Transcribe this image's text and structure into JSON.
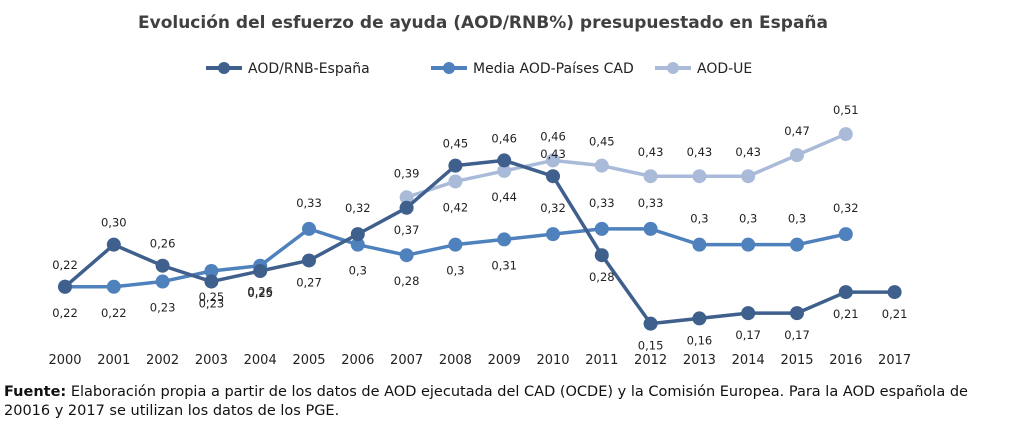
{
  "chart_data": {
    "type": "line",
    "title": "Evolución del esfuerzo de ayuda (AOD/RNB%) presupuestado en España",
    "categories": [
      "2000",
      "2001",
      "2002",
      "2003",
      "2004",
      "2005",
      "2006",
      "2007",
      "2008",
      "2009",
      "2010",
      "2011",
      "2012",
      "2013",
      "2014",
      "2015",
      "2016",
      "2017"
    ],
    "ylim": [
      0.1,
      0.55
    ],
    "grid": false,
    "legend_position": "top",
    "series": [
      {
        "name": "AOD/RNB-España",
        "color": "#3F5F8C",
        "values": [
          0.22,
          0.3,
          0.26,
          0.23,
          0.25,
          0.27,
          0.32,
          0.37,
          0.45,
          0.46,
          0.43,
          0.28,
          0.15,
          0.16,
          0.17,
          0.17,
          0.21,
          0.21
        ],
        "labels": [
          "0,22",
          "0,30",
          "0,26",
          "0,23",
          "0,25",
          "0,27",
          "0,32",
          "0,37",
          "0,45",
          "0,46",
          "0,43",
          "0,28",
          "0,15",
          "0,16",
          "0,17",
          "0,17",
          "0,21",
          "0,21"
        ]
      },
      {
        "name": "Media AOD-Países CAD",
        "color": "#4F81BD",
        "values": [
          0.22,
          0.22,
          0.23,
          0.25,
          0.26,
          0.33,
          0.3,
          0.28,
          0.3,
          0.31,
          0.32,
          0.33,
          0.33,
          0.3,
          0.3,
          0.3,
          0.32,
          null
        ],
        "labels": [
          "0,22",
          "0,22",
          "0,23",
          "0,25",
          "0,26",
          "0,33",
          "0,3",
          "0,28",
          "0,3",
          "0,31",
          "0,32",
          "0,33",
          "0,33",
          "0,3",
          "0,3",
          "0,3",
          "0,32",
          ""
        ]
      },
      {
        "name": "AOD-UE",
        "color": "#A9BBD9",
        "values": [
          null,
          null,
          null,
          null,
          null,
          null,
          null,
          0.39,
          0.42,
          0.44,
          0.46,
          0.45,
          0.43,
          0.43,
          0.43,
          0.47,
          0.51,
          null
        ],
        "labels": [
          "",
          "",
          "",
          "",
          "",
          "",
          "",
          "0,39",
          "0,42",
          "0,44",
          "0,46",
          "0,45",
          "0,43",
          "0,43",
          "0,43",
          "0,47",
          "0,51",
          ""
        ]
      }
    ]
  },
  "source": {
    "label": "Fuente:",
    "text": " Elaboración propia a partir de los datos de AOD ejecutada del CAD (OCDE) y la Comisión Europea. Para la AOD española de 20016 y 2017 se utilizan los datos de los PGE."
  }
}
